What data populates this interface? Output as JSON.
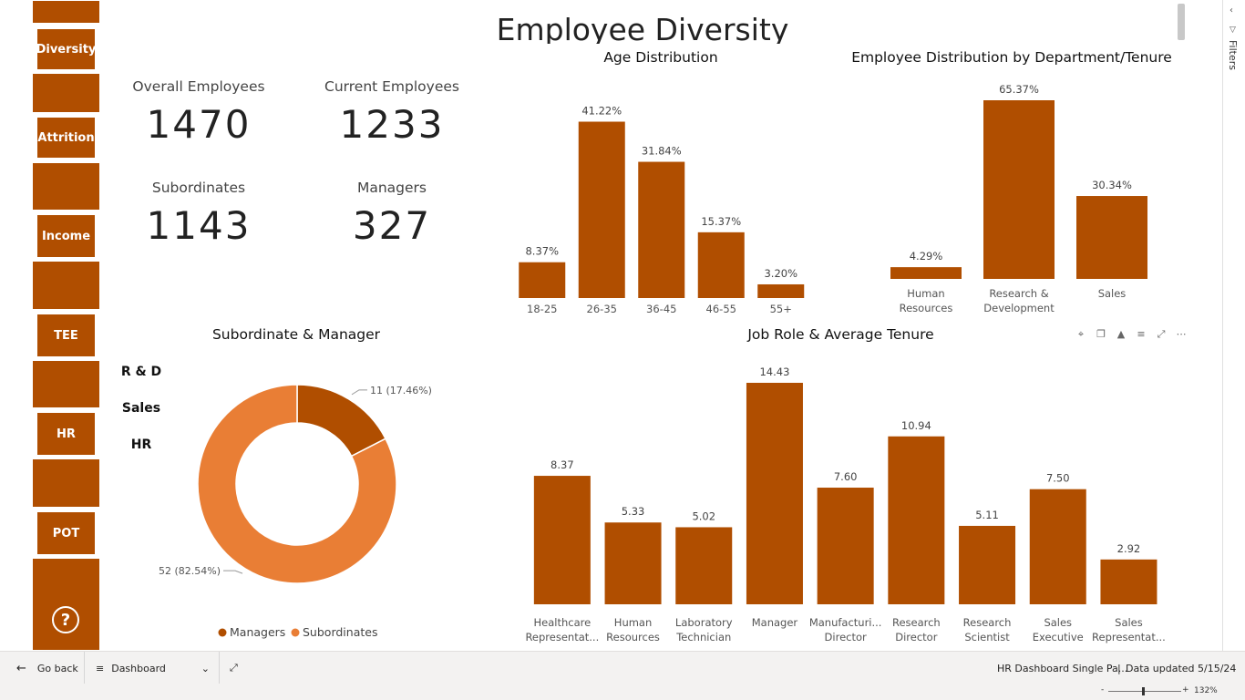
{
  "title": "Employee Diversity",
  "sidebar": {
    "buttons": [
      {
        "label": "Diversity",
        "name": "nav-diversity-button"
      },
      {
        "label": "Attrition",
        "name": "nav-attrition-button"
      },
      {
        "label": "Income",
        "name": "nav-income-button"
      },
      {
        "label": "TEE",
        "name": "nav-tee-button"
      },
      {
        "label": "HR",
        "name": "nav-hr-button"
      },
      {
        "label": "POT",
        "name": "nav-pot-button"
      }
    ],
    "help_icon": "help-icon",
    "help_symbol": "?",
    "color": "#b04e00"
  },
  "kpis": {
    "overall_label": "Overall Employees",
    "overall_value": "1470",
    "current_label": "Current Employees",
    "current_value": "1233",
    "subordinates_label": "Subordinates",
    "subordinates_value": "1143",
    "managers_label": "Managers",
    "managers_value": "327"
  },
  "department_slicer": {
    "items": [
      "R & D",
      "Sales",
      "HR"
    ]
  },
  "chart_data": [
    {
      "type": "bar",
      "title": "Age Distribution",
      "categories": [
        "18-25",
        "26-35",
        "36-45",
        "46-55",
        "55+"
      ],
      "values": [
        8.37,
        41.22,
        31.84,
        15.37,
        3.2
      ],
      "labels": [
        "8.37%",
        "41.22%",
        "31.84%",
        "15.37%",
        "3.20%"
      ],
      "ylim": [
        0,
        45
      ],
      "color": "#b04e00"
    },
    {
      "type": "bar",
      "title": "Employee Distribution by Department/Tenure",
      "categories": [
        [
          "Human",
          "Resources"
        ],
        [
          "Research &",
          "Development"
        ],
        [
          "Sales"
        ]
      ],
      "values": [
        4.29,
        65.37,
        30.34
      ],
      "labels": [
        "4.29%",
        "65.37%",
        "30.34%"
      ],
      "ylim": [
        0,
        70
      ],
      "color": "#b04e00"
    },
    {
      "type": "pie",
      "title": "Subordinate & Manager",
      "slices": [
        {
          "name": "Managers",
          "value": 11,
          "label": "11 (17.46%)",
          "color": "#b04e00"
        },
        {
          "name": "Subordinates",
          "value": 52,
          "label": "52 (82.54%)",
          "color": "#e97e35"
        }
      ],
      "legend": [
        "Managers",
        "Subordinates"
      ],
      "legend_position": "bottom"
    },
    {
      "type": "bar",
      "title": "Job Role & Average Tenure",
      "categories": [
        [
          "Healthcare",
          "Representat..."
        ],
        [
          "Human",
          "Resources"
        ],
        [
          "Laboratory",
          "Technician"
        ],
        [
          "Manager"
        ],
        [
          "Manufacturi...",
          "Director"
        ],
        [
          "Research",
          "Director"
        ],
        [
          "Research",
          "Scientist"
        ],
        [
          "Sales",
          "Executive"
        ],
        [
          "Sales",
          "Representat..."
        ]
      ],
      "values": [
        8.37,
        5.33,
        5.02,
        14.43,
        7.6,
        10.94,
        5.11,
        7.5,
        2.92
      ],
      "labels": [
        "8.37",
        "5.33",
        "5.02",
        "14.43",
        "7.60",
        "10.94",
        "5.11",
        "7.50",
        "2.92"
      ],
      "ylim": [
        0,
        16
      ],
      "color": "#b04e00"
    }
  ],
  "visual_header_icons": [
    "pin-icon",
    "copy-icon",
    "bell-icon",
    "filter-icon",
    "focus-mode-icon",
    "more-options-icon"
  ],
  "filters_pane": {
    "label": "Filters",
    "collapse_icon": "chevron-left-icon"
  },
  "bottom_bar": {
    "go_back": "Go back",
    "page_name": "Dashboard",
    "report_name": "HR Dashboard Single Pa...",
    "data_updated": "Data updated 5/15/24"
  },
  "status_bar": {
    "zoom": "132%"
  }
}
